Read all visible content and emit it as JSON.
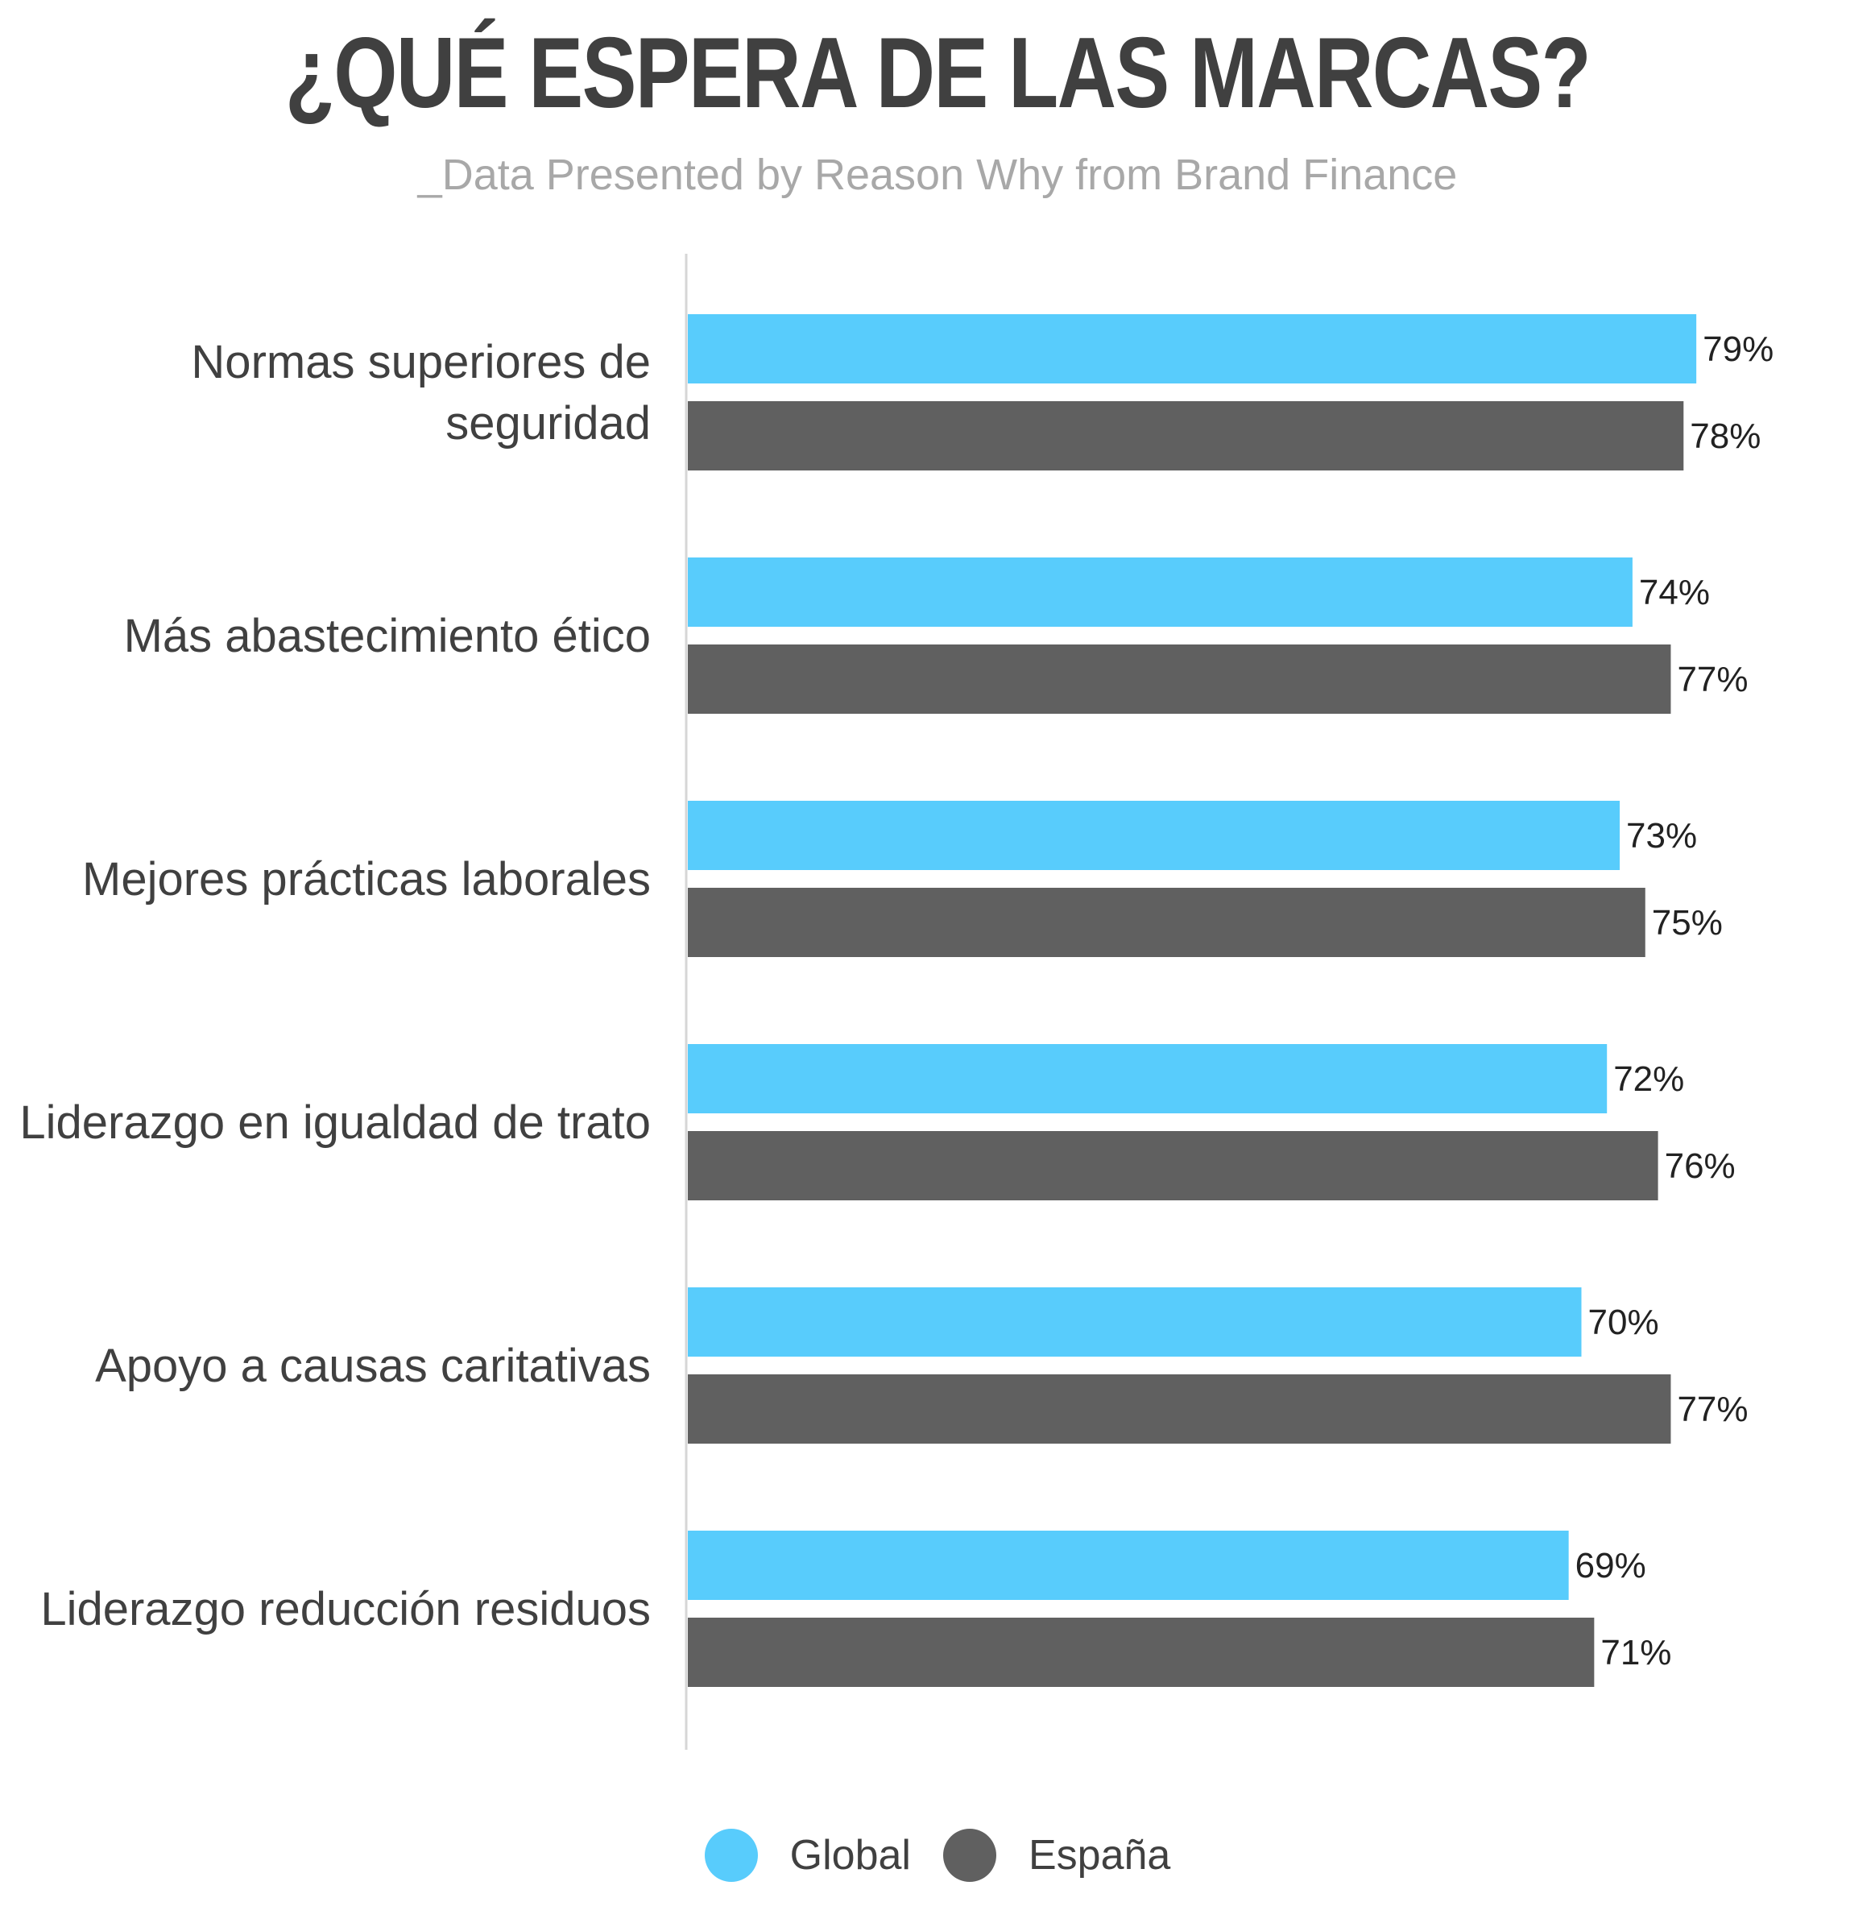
{
  "title": "¿QUÉ ESPERA DE LAS MARCAS?",
  "subtitle": "_Data Presented by Reason Why from Brand Finance",
  "chart_data": {
    "type": "bar",
    "orientation": "horizontal",
    "title": "¿QUÉ ESPERA DE LAS MARCAS?",
    "subtitle": "_Data Presented by Reason Why from Brand Finance",
    "categories": [
      [
        "Normas superiores de",
        "seguridad"
      ],
      [
        "Más abastecimiento ético"
      ],
      [
        "Mejores prácticas laborales"
      ],
      [
        "Liderazgo en igualdad de trato"
      ],
      [
        "Apoyo a causas caritativas"
      ],
      [
        "Liderazgo reducción residuos"
      ]
    ],
    "series": [
      {
        "name": "Global",
        "color": "#58ccfc",
        "values": [
          79,
          74,
          73,
          72,
          70,
          69
        ],
        "labels": [
          "79%",
          "74%",
          "73%",
          "72%",
          "70%",
          "69%"
        ]
      },
      {
        "name": "España",
        "color": "#606060",
        "values": [
          78,
          77,
          75,
          76,
          77,
          71
        ],
        "labels": [
          "78%",
          "77%",
          "75%",
          "76%",
          "77%",
          "71%"
        ]
      }
    ],
    "xlim": [
      0,
      100
    ],
    "grid": false,
    "legend": "bottom-center",
    "data_labels": true
  }
}
